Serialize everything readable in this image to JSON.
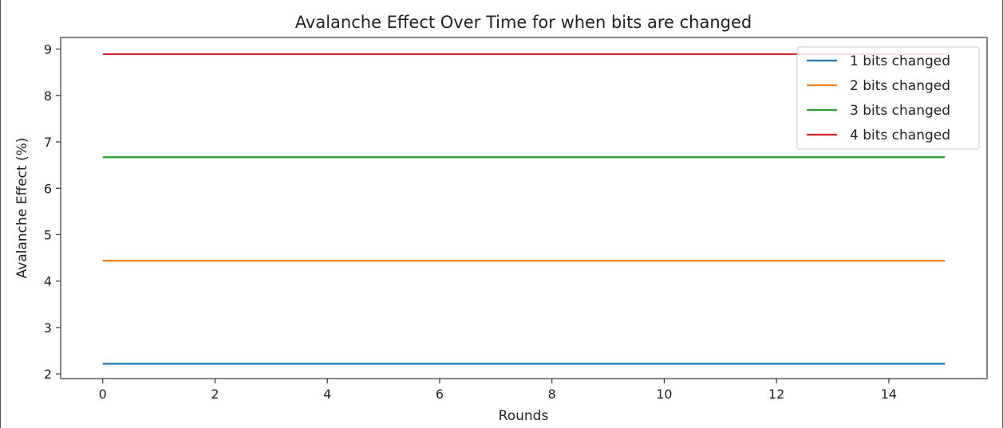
{
  "chart_data": {
    "type": "line",
    "title": "Avalanche Effect Over Time for when bits are changed",
    "xlabel": "Rounds",
    "ylabel": "Avalanche Effect (%)",
    "xlim": [
      -0.75,
      15.75
    ],
    "ylim": [
      1.9,
      9.25
    ],
    "xticks": [
      0,
      2,
      4,
      6,
      8,
      10,
      12,
      14
    ],
    "yticks": [
      2,
      3,
      4,
      5,
      6,
      7,
      8,
      9
    ],
    "grid": false,
    "legend_position": "top-right",
    "x": [
      0,
      1,
      2,
      3,
      4,
      5,
      6,
      7,
      8,
      9,
      10,
      11,
      12,
      13,
      14,
      15
    ],
    "series": [
      {
        "name": "1 bits changed",
        "color": "#1f77b4",
        "values": [
          2.22,
          2.22,
          2.22,
          2.22,
          2.22,
          2.22,
          2.22,
          2.22,
          2.22,
          2.22,
          2.22,
          2.22,
          2.22,
          2.22,
          2.22,
          2.22
        ]
      },
      {
        "name": "2 bits changed",
        "color": "#ff7f0e",
        "values": [
          4.44,
          4.44,
          4.44,
          4.44,
          4.44,
          4.44,
          4.44,
          4.44,
          4.44,
          4.44,
          4.44,
          4.44,
          4.44,
          4.44,
          4.44,
          4.44
        ]
      },
      {
        "name": "3 bits changed",
        "color": "#2ca02c",
        "values": [
          6.67,
          6.67,
          6.67,
          6.67,
          6.67,
          6.67,
          6.67,
          6.67,
          6.67,
          6.67,
          6.67,
          6.67,
          6.67,
          6.67,
          6.67,
          6.67
        ]
      },
      {
        "name": "4 bits changed",
        "color": "#d62728",
        "values": [
          8.89,
          8.89,
          8.89,
          8.89,
          8.89,
          8.89,
          8.89,
          8.89,
          8.89,
          8.89,
          8.89,
          8.89,
          8.89,
          8.89,
          8.89,
          8.89
        ]
      }
    ]
  }
}
